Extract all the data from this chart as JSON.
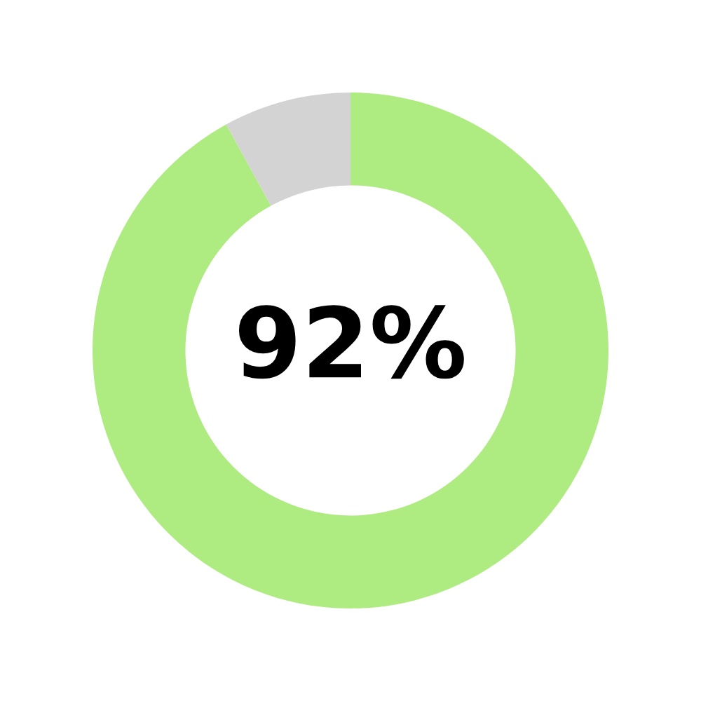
{
  "chart_data": {
    "type": "donut",
    "categories": [
      null,
      null
    ],
    "values": [
      92,
      8
    ],
    "colors": [
      "#aeeb80",
      "#d3d3d3"
    ],
    "annotations": [
      "92%"
    ]
  }
}
